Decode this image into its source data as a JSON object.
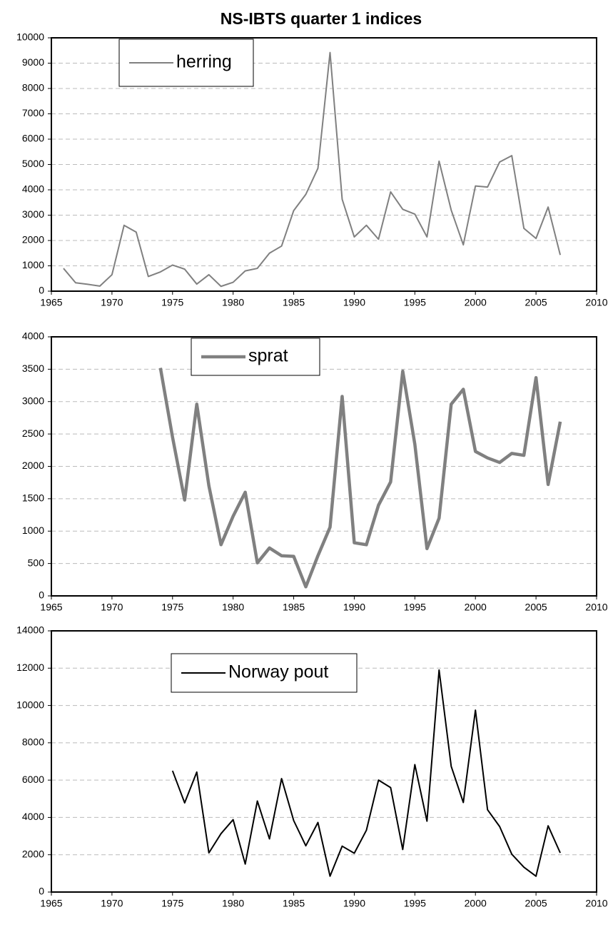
{
  "chart_data": [
    {
      "type": "line",
      "title": "NS-IBTS quarter 1 indices",
      "x": [
        1966,
        1967,
        1968,
        1969,
        1970,
        1971,
        1972,
        1973,
        1974,
        1975,
        1976,
        1977,
        1978,
        1979,
        1980,
        1981,
        1982,
        1983,
        1984,
        1985,
        1986,
        1987,
        1988,
        1989,
        1990,
        1991,
        1992,
        1993,
        1994,
        1995,
        1996,
        1997,
        1998,
        1999,
        2000,
        2001,
        2002,
        2003,
        2004,
        2005,
        2006,
        2007
      ],
      "series": [
        {
          "name": "herring",
          "color": "#808080",
          "values": [
            900,
            330,
            270,
            200,
            650,
            2600,
            2330,
            580,
            760,
            1030,
            870,
            280,
            650,
            190,
            350,
            800,
            900,
            1500,
            1780,
            3180,
            3820,
            4850,
            9420,
            3630,
            2140,
            2600,
            2050,
            3920,
            3230,
            3040,
            2140,
            5130,
            3200,
            1830,
            4150,
            4110,
            5100,
            5350,
            2480,
            2080,
            3320,
            1430
          ]
        }
      ],
      "xlim": [
        1965,
        2010
      ],
      "xticks": [
        1965,
        1970,
        1975,
        1980,
        1985,
        1990,
        1995,
        2000,
        2005,
        2010
      ],
      "ylim": [
        0,
        10000
      ],
      "yticks": [
        0,
        1000,
        2000,
        3000,
        4000,
        5000,
        6000,
        7000,
        8000,
        9000,
        10000
      ],
      "grid": true
    },
    {
      "type": "line",
      "x": [
        1974,
        1975,
        1976,
        1977,
        1978,
        1979,
        1980,
        1981,
        1982,
        1983,
        1984,
        1985,
        1986,
        1987,
        1988,
        1989,
        1990,
        1991,
        1992,
        1993,
        1994,
        1995,
        1996,
        1997,
        1998,
        1999,
        2000,
        2001,
        2002,
        2003,
        2004,
        2005,
        2006,
        2007
      ],
      "series": [
        {
          "name": "sprat",
          "color": "#808080",
          "values": [
            3520,
            2450,
            1480,
            2960,
            1700,
            790,
            1230,
            1600,
            510,
            740,
            620,
            610,
            140,
            620,
            1060,
            3080,
            820,
            790,
            1400,
            1760,
            3470,
            2340,
            730,
            1200,
            2960,
            3190,
            2230,
            2130,
            2060,
            2200,
            2170,
            3370,
            1720,
            2690
          ]
        }
      ],
      "xlim": [
        1965,
        2010
      ],
      "xticks": [
        1965,
        1970,
        1975,
        1980,
        1985,
        1990,
        1995,
        2000,
        2005,
        2010
      ],
      "ylim": [
        0,
        4000
      ],
      "yticks": [
        0,
        500,
        1000,
        1500,
        2000,
        2500,
        3000,
        3500,
        4000
      ],
      "grid": true
    },
    {
      "type": "line",
      "x": [
        1975,
        1976,
        1977,
        1978,
        1979,
        1980,
        1981,
        1982,
        1983,
        1984,
        1985,
        1986,
        1987,
        1988,
        1989,
        1990,
        1991,
        1992,
        1993,
        1994,
        1995,
        1996,
        1997,
        1998,
        1999,
        2000,
        2001,
        2002,
        2003,
        2004,
        2005,
        2006,
        2007
      ],
      "series": [
        {
          "name": "Norway pout",
          "color": "#000000",
          "values": [
            6500,
            4780,
            6430,
            2100,
            3130,
            3880,
            1500,
            4880,
            2850,
            6080,
            3830,
            2480,
            3730,
            850,
            2460,
            2080,
            3310,
            6000,
            5600,
            2280,
            6830,
            3800,
            11900,
            6740,
            4800,
            9750,
            4410,
            3510,
            2030,
            1330,
            850,
            3550,
            2100
          ]
        }
      ],
      "xlim": [
        1965,
        2010
      ],
      "xticks": [
        1965,
        1970,
        1975,
        1980,
        1985,
        1990,
        1995,
        2000,
        2005,
        2010
      ],
      "ylim": [
        0,
        14000
      ],
      "yticks": [
        0,
        2000,
        4000,
        6000,
        8000,
        10000,
        12000,
        14000
      ],
      "grid": true
    }
  ]
}
